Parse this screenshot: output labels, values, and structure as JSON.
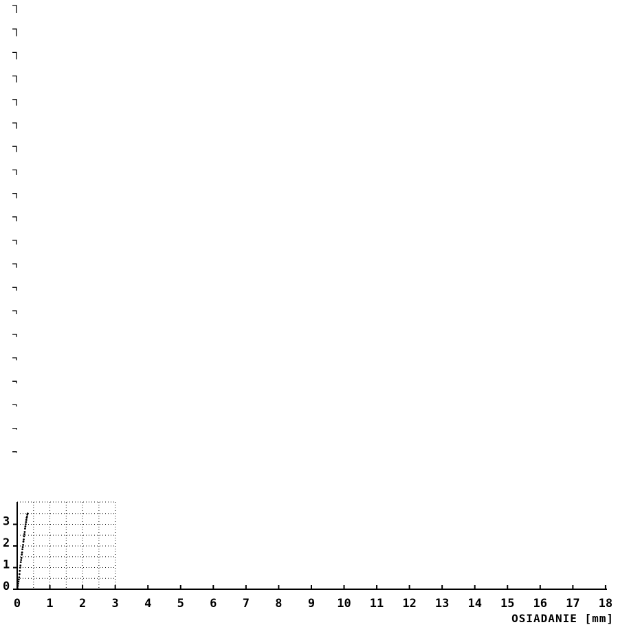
{
  "chart_data": {
    "type": "scatter",
    "title": "",
    "xlabel": "OSIADANIE [mm]",
    "ylabel": "",
    "xlim": [
      0,
      18
    ],
    "ylim": [
      0,
      4
    ],
    "x_ticks": [
      "0",
      "1",
      "2",
      "3",
      "4",
      "5",
      "6",
      "7",
      "8",
      "9",
      "10",
      "11",
      "12",
      "13",
      "14",
      "15",
      "16",
      "17",
      "18"
    ],
    "y_ticks": [
      "0",
      "1",
      "2",
      "3"
    ],
    "grid": true,
    "grid_region": {
      "x": [
        0,
        3
      ],
      "y": [
        0,
        4
      ]
    },
    "legend": "none",
    "colors": {
      "points": "#000000",
      "axes": "#000000",
      "grid": "#000000",
      "marks": "#000000"
    },
    "series": [
      {
        "x": [
          0.01,
          0.02,
          0.03,
          0.04,
          0.05,
          0.06,
          0.07,
          0.08,
          0.09,
          0.1,
          0.11,
          0.12,
          0.13,
          0.14,
          0.15,
          0.16,
          0.17,
          0.18,
          0.19,
          0.2,
          0.21,
          0.22,
          0.23,
          0.24,
          0.25,
          0.26,
          0.27,
          0.28,
          0.29,
          0.3,
          0.31,
          0.32
        ],
        "y": [
          0.05,
          0.15,
          0.25,
          0.35,
          0.45,
          0.55,
          0.7,
          0.85,
          1.0,
          1.1,
          1.25,
          1.35,
          1.45,
          1.6,
          1.7,
          1.85,
          1.95,
          2.05,
          2.2,
          2.3,
          2.45,
          2.55,
          2.65,
          2.8,
          2.9,
          3.0,
          3.1,
          3.2,
          3.3,
          3.35,
          3.45,
          3.5
        ]
      }
    ],
    "left_tick_marks": 20
  }
}
